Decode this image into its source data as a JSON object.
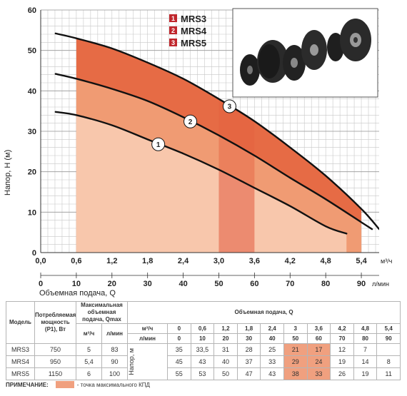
{
  "chart_data": {
    "type": "line",
    "ylabel": "Напор, Н (м)",
    "xlabel": "Объемная подача, Q",
    "x_unit_top": "м³/ч",
    "x_unit_bottom": "л/мин",
    "x_ticks_m3h": [
      "0,0",
      "0,6",
      "1,2",
      "1,8",
      "2,4",
      "3,0",
      "3,6",
      "4,2",
      "4,8",
      "5,4"
    ],
    "x_ticks_lmin": [
      "0",
      "10",
      "20",
      "30",
      "40",
      "50",
      "60",
      "70",
      "80",
      "90"
    ],
    "y_ticks": [
      "0",
      "10",
      "20",
      "30",
      "40",
      "50",
      "60"
    ],
    "xlim": [
      0,
      5.7
    ],
    "ylim": [
      0,
      60
    ],
    "legend": [
      {
        "num": "1",
        "name": "MRS3"
      },
      {
        "num": "2",
        "name": "MRS4"
      },
      {
        "num": "3",
        "name": "MRS5"
      }
    ],
    "series": [
      {
        "name": "1",
        "x": [
          0.25,
          0.6,
          1.2,
          1.8,
          2.4,
          3.0,
          3.6,
          4.2,
          4.8,
          5.15
        ],
        "y": [
          34.8,
          34,
          31.5,
          28,
          24.5,
          20.5,
          16,
          11.5,
          6.5,
          4.7
        ]
      },
      {
        "name": "2",
        "x": [
          0.25,
          0.6,
          1.2,
          1.8,
          2.4,
          3.0,
          3.6,
          4.2,
          4.8,
          5.4,
          5.58
        ],
        "y": [
          44.2,
          43,
          40.5,
          37.5,
          33.5,
          29,
          24,
          18.5,
          13.2,
          7.5,
          5.8
        ]
      },
      {
        "name": "3",
        "x": [
          0.25,
          0.6,
          1.2,
          1.8,
          2.4,
          3.0,
          3.6,
          4.2,
          4.8,
          5.4,
          5.7
        ],
        "y": [
          54.2,
          53,
          50.5,
          47,
          43,
          38,
          32.5,
          26,
          19,
          10.8,
          5.8
        ]
      }
    ],
    "shaded_x_range": [
      0.6,
      5.4
    ],
    "efficiency_band_x": [
      3.0,
      3.6
    ],
    "colors": {
      "light": "#f8c7ac",
      "mid": "#f09b73",
      "dark": "#e66b45",
      "legend_box": "#c0272d"
    }
  },
  "table": {
    "header": {
      "model": "Модель",
      "power": "Потребляемая мощность (P1), Вт",
      "max_flow": "Максимальная объемная подача, Qmax",
      "flow_title": "Объемная подача, Q",
      "head": "Напор, м",
      "unit_m3h": "м³/ч",
      "unit_lmin": "л/мин",
      "q_m3h": [
        "0",
        "0,6",
        "1,2",
        "1,8",
        "2,4",
        "3",
        "3,6",
        "4,2",
        "4,8",
        "5,4"
      ],
      "q_lmin": [
        "0",
        "10",
        "20",
        "30",
        "40",
        "50",
        "60",
        "70",
        "80",
        "90"
      ]
    },
    "rows": [
      {
        "model": "MRS3",
        "power": "750",
        "qmax_m3h": "5",
        "qmax_lmin": "83",
        "heads": [
          "35",
          "33,5",
          "31",
          "28",
          "25",
          "21",
          "17",
          "12",
          "7",
          ""
        ]
      },
      {
        "model": "MRS4",
        "power": "950",
        "qmax_m3h": "5,4",
        "qmax_lmin": "90",
        "heads": [
          "45",
          "43",
          "40",
          "37",
          "33",
          "29",
          "24",
          "19",
          "14",
          "8"
        ]
      },
      {
        "model": "MRS5",
        "power": "1150",
        "qmax_m3h": "6",
        "qmax_lmin": "100",
        "heads": [
          "55",
          "53",
          "50",
          "47",
          "43",
          "38",
          "33",
          "26",
          "19",
          "11"
        ]
      }
    ]
  },
  "note": {
    "label": "ПРИМЕЧАНИЕ:",
    "text": "- точка максимального КПД"
  }
}
